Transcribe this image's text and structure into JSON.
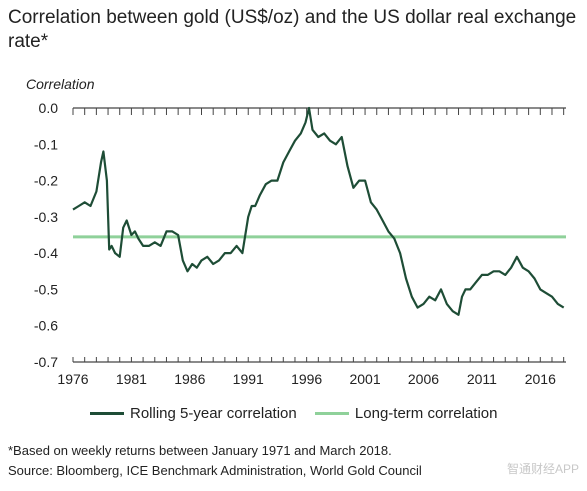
{
  "title": "Correlation between gold (US$/oz) and the US dollar real exchange rate*",
  "footnote": "*Based on weekly returns between January 1971 and March 2018.",
  "source": "Source: Bloomberg, ICE Benchmark Administration, World Gold Council",
  "watermark": "智通财经APP",
  "colors": {
    "rolling": "#1e4d36",
    "longterm": "#8fd19a",
    "grid": "#dddddd",
    "axis": "#444444"
  },
  "chart_data": {
    "type": "line",
    "ylabel": "Correlation",
    "xlabel": "",
    "xlim": [
      1976,
      2018.2
    ],
    "ylim": [
      -0.7,
      0.0
    ],
    "xticks": [
      1976,
      1981,
      1986,
      1991,
      1996,
      2001,
      2006,
      2011,
      2016
    ],
    "yticks": [
      0.0,
      -0.1,
      -0.2,
      -0.3,
      -0.4,
      -0.5,
      -0.6,
      -0.7
    ],
    "ytick_labels": [
      "0.0",
      "-0.1",
      "-0.2",
      "-0.3",
      "-0.4",
      "-0.5",
      "-0.6",
      "-0.7"
    ],
    "grid": false,
    "legend_position": "bottom",
    "series": [
      {
        "name": "Rolling 5-year correlation",
        "color": "#1e4d36",
        "x": [
          1976.0,
          1976.5,
          1977.0,
          1977.5,
          1978.0,
          1978.4,
          1978.6,
          1978.9,
          1979.1,
          1979.3,
          1979.6,
          1980.0,
          1980.3,
          1980.6,
          1981.0,
          1981.3,
          1981.6,
          1982.0,
          1982.5,
          1983.0,
          1983.5,
          1984.0,
          1984.5,
          1985.0,
          1985.4,
          1985.8,
          1986.2,
          1986.6,
          1987.0,
          1987.5,
          1988.0,
          1988.5,
          1989.0,
          1989.5,
          1990.0,
          1990.5,
          1991.0,
          1991.3,
          1991.6,
          1992.0,
          1992.5,
          1993.0,
          1993.5,
          1994.0,
          1994.5,
          1995.0,
          1995.5,
          1995.9,
          1996.2,
          1996.5,
          1997.0,
          1997.5,
          1998.0,
          1998.5,
          1999.0,
          1999.5,
          2000.0,
          2000.5,
          2001.0,
          2001.5,
          2002.0,
          2002.5,
          2003.0,
          2003.5,
          2004.0,
          2004.5,
          2005.0,
          2005.5,
          2006.0,
          2006.5,
          2007.0,
          2007.5,
          2008.0,
          2008.5,
          2009.0,
          2009.3,
          2009.6,
          2010.0,
          2010.5,
          2011.0,
          2011.5,
          2012.0,
          2012.5,
          2013.0,
          2013.5,
          2014.0,
          2014.5,
          2015.0,
          2015.5,
          2016.0,
          2016.5,
          2017.0,
          2017.5,
          2018.0
        ],
        "values": [
          -0.28,
          -0.27,
          -0.26,
          -0.27,
          -0.23,
          -0.15,
          -0.12,
          -0.2,
          -0.39,
          -0.38,
          -0.4,
          -0.41,
          -0.33,
          -0.31,
          -0.35,
          -0.34,
          -0.36,
          -0.38,
          -0.38,
          -0.37,
          -0.38,
          -0.34,
          -0.34,
          -0.35,
          -0.42,
          -0.45,
          -0.43,
          -0.44,
          -0.42,
          -0.41,
          -0.43,
          -0.42,
          -0.4,
          -0.4,
          -0.38,
          -0.4,
          -0.3,
          -0.27,
          -0.27,
          -0.24,
          -0.21,
          -0.2,
          -0.2,
          -0.15,
          -0.12,
          -0.09,
          -0.07,
          -0.04,
          0.0,
          -0.06,
          -0.08,
          -0.07,
          -0.09,
          -0.1,
          -0.08,
          -0.16,
          -0.22,
          -0.2,
          -0.2,
          -0.26,
          -0.28,
          -0.31,
          -0.34,
          -0.36,
          -0.4,
          -0.47,
          -0.52,
          -0.55,
          -0.54,
          -0.52,
          -0.53,
          -0.5,
          -0.54,
          -0.56,
          -0.57,
          -0.52,
          -0.5,
          -0.5,
          -0.48,
          -0.46,
          -0.46,
          -0.45,
          -0.45,
          -0.46,
          -0.44,
          -0.41,
          -0.44,
          -0.45,
          -0.47,
          -0.5,
          -0.51,
          -0.52,
          -0.54,
          -0.55
        ]
      },
      {
        "name": "Long-term correlation",
        "color": "#8fd19a",
        "x": [
          1976,
          2018.2
        ],
        "values": [
          -0.355,
          -0.355
        ]
      }
    ]
  }
}
